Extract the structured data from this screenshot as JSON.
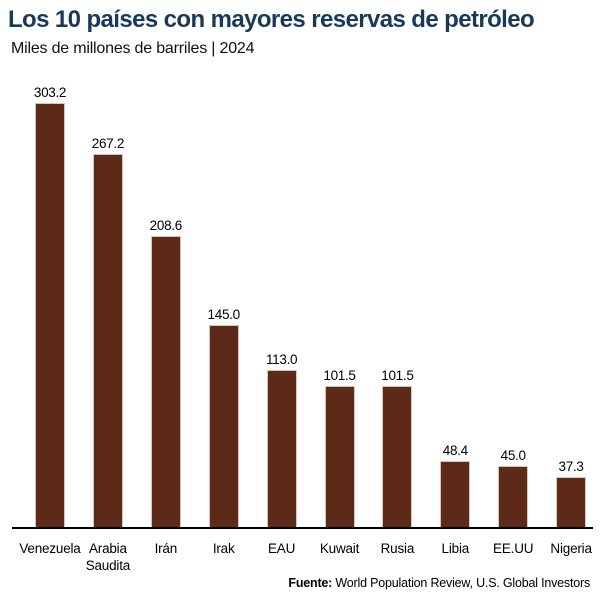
{
  "header": {
    "title": "Los 10 países con mayores reservas de petróleo",
    "subtitle": "Miles de millones de barriles | 2024"
  },
  "chart_data": {
    "type": "bar",
    "title": "Los 10 países con mayores reservas de petróleo",
    "subtitle": "Miles de millones de barriles | 2024",
    "ylabel": "Miles de millones de barriles",
    "xlabel": "",
    "categories": [
      "Venezuela",
      "Arabia Saudita",
      "Irán",
      "Irak",
      "EAU",
      "Kuwait",
      "Rusia",
      "Libia",
      "EE.UU",
      "Nigeria"
    ],
    "values": [
      303.2,
      267.2,
      208.6,
      145.0,
      113.0,
      101.5,
      101.5,
      48.4,
      45.0,
      37.3
    ],
    "value_labels": [
      "303.2",
      "267.2",
      "208.6",
      "145.0",
      "113.0",
      "101.5",
      "101.5",
      "48.4",
      "45.0",
      "37.3"
    ],
    "ylim": [
      0,
      310
    ],
    "grid": false,
    "legend": false,
    "value_labels_position": "above-bars",
    "bar_color": "#5c2a17",
    "bar_edge_color": "#d8c5bc",
    "axis_color": "#000000"
  },
  "footer": {
    "source_label": "Fuente:",
    "source_text": " World Population Review, U.S. Global Investors"
  },
  "colors": {
    "title": "#17395a",
    "text": "#000000",
    "background": "#ffffff"
  }
}
